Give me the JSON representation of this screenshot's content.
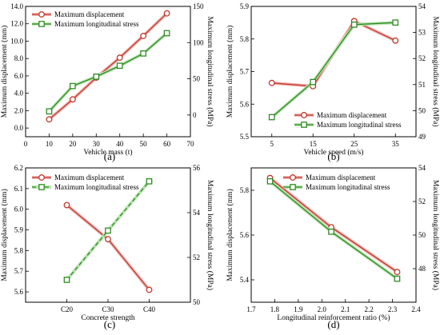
{
  "colors": {
    "displacement": "#c0392b",
    "displacement_glow": "#f3b6b6",
    "stress": "#2e8b22",
    "stress_glow": "#b9e3b0"
  },
  "chart_data": [
    {
      "type": "line",
      "caption": "(a)",
      "xlabel": "Vehicle mass (t)",
      "ylabel_left": "Maximum displacement (mm)",
      "ylabel_right": "Maximum longitudinal stress (MPa)",
      "xlim": [
        0,
        70
      ],
      "ylim_left": [
        -1,
        14
      ],
      "ylim_right": [
        -30,
        150
      ],
      "x_ticks": [
        0,
        10,
        20,
        30,
        40,
        50,
        60,
        70
      ],
      "y_left_ticks": [
        0.0,
        2.0,
        4.0,
        6.0,
        8.0,
        10.0,
        12.0,
        14.0
      ],
      "y_left_tick_labels": [
        "0.0",
        "2.0",
        "4.0",
        "6.0",
        "8.0",
        "10.0",
        "12.0",
        "14.0"
      ],
      "y_right_ticks": [
        0,
        50,
        100,
        150
      ],
      "y_right_tick_labels": [
        "0",
        "50",
        "100",
        "150"
      ],
      "legend_position": "top-left",
      "series": [
        {
          "name": "Maximum displacement",
          "axis": "left",
          "style": "circle",
          "solid": true,
          "x": [
            10,
            20,
            30,
            40,
            50,
            60
          ],
          "y": [
            1.0,
            3.3,
            5.8,
            8.1,
            10.6,
            13.2
          ]
        },
        {
          "name": "Maximum longitudinal stress",
          "axis": "right",
          "style": "square",
          "solid": true,
          "x": [
            10,
            20,
            30,
            40,
            50,
            60
          ],
          "y": [
            5,
            40,
            53,
            68,
            85,
            113
          ]
        }
      ]
    },
    {
      "type": "line",
      "caption": "(b)",
      "xlabel": "Vehicle speed (m/s)",
      "ylabel_left": "Maximum displacement (mm)",
      "ylabel_right": "Maximum longitudinal stress (MPa)",
      "xlim": [
        0,
        40
      ],
      "ylim_left": [
        5.5,
        5.9
      ],
      "ylim_right": [
        49,
        54
      ],
      "x_ticks": [
        5,
        15,
        25,
        35
      ],
      "y_left_ticks": [
        5.5,
        5.6,
        5.7,
        5.8,
        5.9
      ],
      "y_left_tick_labels": [
        "5.5",
        "5.6",
        "5.7",
        "5.8",
        "5.9"
      ],
      "y_right_ticks": [
        49,
        50,
        51,
        52,
        53,
        54
      ],
      "y_right_tick_labels": [
        "49",
        "50",
        "51",
        "52",
        "53",
        "54"
      ],
      "legend_position": "bottom-right",
      "series": [
        {
          "name": "Maximum displacement",
          "axis": "left",
          "style": "circle",
          "solid": true,
          "x": [
            5,
            15,
            25,
            35
          ],
          "y": [
            5.665,
            5.655,
            5.855,
            5.795
          ]
        },
        {
          "name": "Maximum longitudinal stress",
          "axis": "right",
          "style": "square",
          "solid": true,
          "x": [
            5,
            15,
            25,
            35
          ],
          "y": [
            49.75,
            51.1,
            53.3,
            53.38
          ]
        }
      ]
    },
    {
      "type": "line",
      "caption": "(c)",
      "xlabel": "Concrete strength",
      "ylabel_left": "Maximum displacement (mm)",
      "ylabel_right": "Maximum longitudinal stress (MPa)",
      "categories": [
        "C20",
        "C30",
        "C40"
      ],
      "ylim_left": [
        5.55,
        6.2
      ],
      "ylim_right": [
        50,
        56
      ],
      "y_left_ticks": [
        5.6,
        5.7,
        5.8,
        5.9,
        6.0,
        6.1,
        6.2
      ],
      "y_left_tick_labels": [
        "5.6",
        "5.7",
        "5.8",
        "5.9",
        "6.0",
        "6.1",
        "6.2"
      ],
      "y_right_ticks": [
        50,
        52,
        54,
        56
      ],
      "y_right_tick_labels": [
        "50",
        "52",
        "54",
        "56"
      ],
      "legend_position": "top-left",
      "series": [
        {
          "name": "Maximum displacement",
          "axis": "left",
          "style": "circle",
          "solid": true,
          "values": [
            6.02,
            5.855,
            5.61
          ]
        },
        {
          "name": "Maximum longitudinal stress",
          "axis": "right",
          "style": "square",
          "solid": false,
          "values": [
            51.0,
            53.2,
            55.4
          ]
        }
      ]
    },
    {
      "type": "line",
      "caption": "(d)",
      "xlabel": "Longitudinal reinforcement ratio (%)",
      "ylabel_left": "Maximum displacement (mm)",
      "ylabel_right": "Maximum longitudinal stress (MPa)",
      "xlim": [
        1.7,
        2.4
      ],
      "ylim_left": [
        5.3,
        5.9
      ],
      "ylim_right": [
        46,
        54
      ],
      "x_ticks": [
        1.7,
        1.8,
        1.9,
        2.0,
        2.1,
        2.2,
        2.3,
        2.4
      ],
      "x_tick_labels": [
        "1.7",
        "1.8",
        "1.9",
        "2.0",
        "2.1",
        "2.2",
        "2.3",
        "2.4"
      ],
      "y_left_ticks": [
        5.4,
        5.6,
        5.8
      ],
      "y_left_tick_labels": [
        "5.4",
        "5.6",
        "5.8"
      ],
      "y_right_ticks": [
        48,
        50,
        52,
        54
      ],
      "y_right_tick_labels": [
        "48",
        "50",
        "52",
        "54"
      ],
      "legend_position": "top-right",
      "series": [
        {
          "name": "Maximum displacement",
          "axis": "left",
          "style": "circle",
          "solid": true,
          "x": [
            1.78,
            2.04,
            2.32
          ],
          "y": [
            5.855,
            5.635,
            5.435
          ]
        },
        {
          "name": "Maximum longitudinal stress",
          "axis": "right",
          "style": "square",
          "solid": true,
          "x": [
            1.78,
            2.04,
            2.32
          ],
          "y": [
            53.2,
            50.2,
            47.4
          ]
        }
      ]
    }
  ]
}
